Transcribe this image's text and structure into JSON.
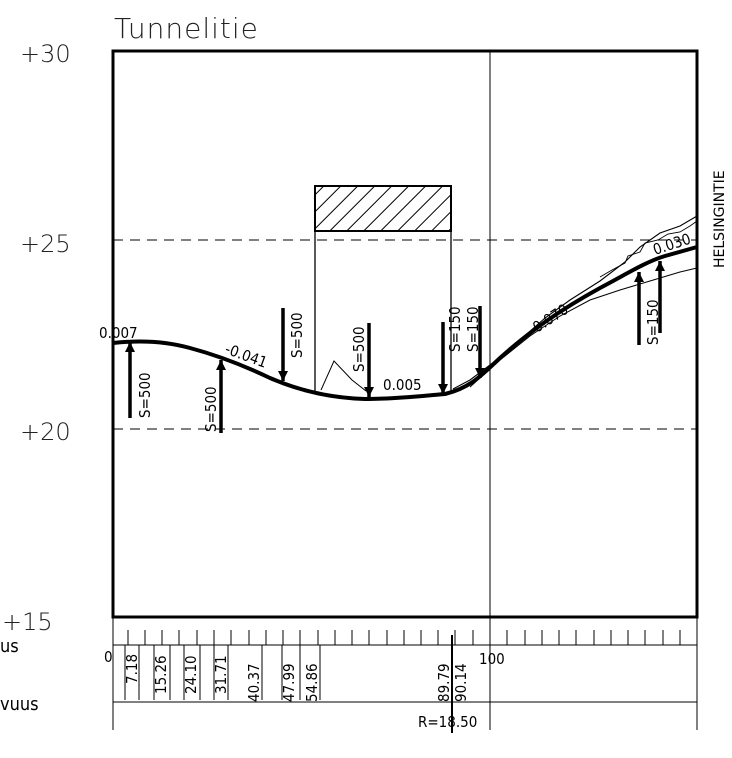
{
  "title": "Tunnelitie",
  "road_name": "HELSINGINTIE",
  "elevation_labels": [
    "+30",
    "+25",
    "+20",
    "+15"
  ],
  "slope_labels": [
    "0.007",
    "-0.041",
    "0.005",
    "0.070",
    "0.030"
  ],
  "sag_labels": [
    "S=500",
    "S=500",
    "S=500",
    "S=500",
    "S=150",
    "S=150",
    "S=150"
  ],
  "station_labels": [
    "0",
    "7.18",
    "15.26",
    "24.10",
    "31.71",
    "40.37",
    "47.99",
    "54.86",
    "89.79",
    "90.14",
    "100"
  ],
  "curve_label": "R=18.50",
  "left_fragments": [
    "us",
    "vuus"
  ]
}
